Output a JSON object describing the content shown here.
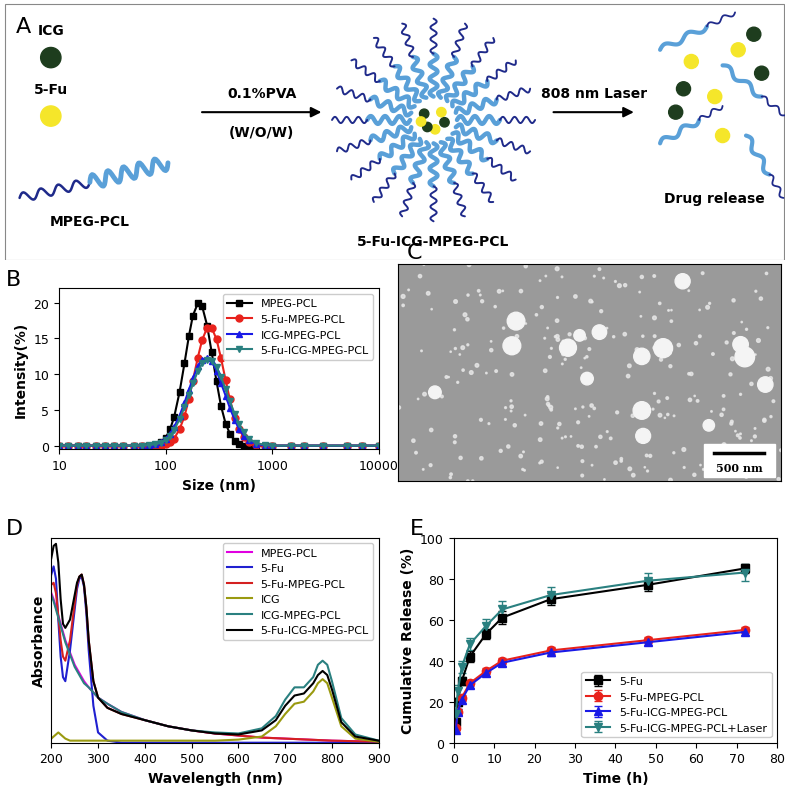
{
  "chart_data": [
    {
      "panel_label": "B",
      "type": "line",
      "log": "x",
      "x_label": "Size (nm)",
      "y_label": "Intensity(%)",
      "x": [
        10,
        12,
        15,
        18,
        22,
        27,
        33,
        40,
        50,
        60,
        70,
        80,
        90,
        100,
        110,
        120,
        135,
        150,
        165,
        180,
        200,
        220,
        245,
        270,
        300,
        330,
        365,
        400,
        445,
        490,
        540,
        600,
        700,
        850,
        1000,
        1500,
        2000,
        3000,
        5000,
        7000,
        10000
      ],
      "xlim": [
        10,
        10000
      ],
      "xticks": [
        10,
        100,
        1000,
        10000
      ],
      "ylim": [
        -0.5,
        22
      ],
      "yticks": [
        0,
        5,
        10,
        15,
        20
      ],
      "legend": "upper right",
      "series": [
        {
          "name": "MPEG-PCL",
          "color": "#000000",
          "marker": "square",
          "values": [
            0,
            0,
            0,
            0,
            0,
            0,
            0,
            0,
            0,
            0,
            0,
            0.1,
            0.5,
            1.1,
            2.3,
            4.0,
            7.5,
            11.5,
            15.3,
            18.2,
            19.9,
            19.5,
            16.8,
            13.1,
            9.0,
            5.6,
            3.1,
            1.7,
            0.7,
            0.2,
            0,
            0,
            0,
            0,
            0,
            0,
            0,
            0,
            0,
            0,
            0
          ]
        },
        {
          "name": "5-Fu-MPEG-PCL",
          "color": "#e8221c",
          "marker": "circle",
          "values": [
            0,
            0,
            0,
            0,
            0,
            0,
            0,
            0,
            0,
            0,
            0,
            0,
            0,
            0.2,
            0.5,
            1.0,
            2.3,
            4.1,
            6.5,
            9.1,
            12.3,
            14.8,
            16.5,
            16.5,
            14.9,
            12.3,
            9.2,
            6.5,
            3.9,
            2.3,
            1.2,
            0.5,
            0.1,
            0,
            0,
            0,
            0,
            0,
            0,
            0,
            0
          ]
        },
        {
          "name": "ICG-MPEG-PCL",
          "color": "#1a1ae6",
          "marker": "triangle_up",
          "values": [
            0,
            0,
            0,
            0,
            0,
            0,
            0,
            0,
            0,
            0,
            0.1,
            0.2,
            0.5,
            1.0,
            1.7,
            2.6,
            4.2,
            6.0,
            7.8,
            9.4,
            11.1,
            12.0,
            12.3,
            11.8,
            10.5,
            8.8,
            7.0,
            5.3,
            3.6,
            2.3,
            1.4,
            0.8,
            0.3,
            0,
            0,
            0,
            0,
            0,
            0,
            0,
            0
          ]
        },
        {
          "name": "5-Fu-ICG-MPEG-PCL",
          "color": "#2a8080",
          "marker": "triangle_down",
          "values": [
            0,
            0,
            0,
            0,
            0,
            0,
            0,
            0,
            0,
            0,
            0.1,
            0.2,
            0.4,
            0.8,
            1.4,
            2.2,
            3.7,
            5.4,
            7.1,
            8.7,
            10.4,
            11.5,
            12.0,
            11.9,
            11.0,
            9.6,
            7.9,
            6.2,
            4.4,
            3.0,
            1.9,
            1.0,
            0.4,
            0.1,
            0,
            0,
            0,
            0,
            0,
            0,
            0
          ]
        }
      ]
    },
    {
      "panel_label": "D",
      "type": "line",
      "tick_labels": "x",
      "x_label": "Wavelength (nm)",
      "y_label": "Absorbance",
      "x": [
        200,
        205,
        210,
        215,
        220,
        225,
        230,
        240,
        250,
        255,
        260,
        265,
        270,
        275,
        280,
        290,
        300,
        320,
        350,
        400,
        450,
        500,
        550,
        600,
        650,
        680,
        700,
        720,
        740,
        760,
        770,
        780,
        790,
        800,
        820,
        850,
        900
      ],
      "xlim": [
        200,
        900
      ],
      "xticks": [
        200,
        300,
        400,
        500,
        600,
        700,
        800,
        900
      ],
      "ylim": [
        0,
        1
      ],
      "yticks": [],
      "legend": "upper right",
      "series": [
        {
          "name": "MPEG-PCL",
          "color": "#e000e0",
          "values": [
            0.73,
            0.7,
            0.66,
            0.62,
            0.58,
            0.54,
            0.5,
            0.44,
            0.38,
            0.36,
            0.34,
            0.32,
            0.3,
            0.285,
            0.27,
            0.245,
            0.22,
            0.19,
            0.15,
            0.11,
            0.08,
            0.06,
            0.045,
            0.035,
            0.025,
            0.022,
            0.02,
            0.018,
            0.016,
            0.014,
            0.013,
            0.012,
            0.011,
            0.01,
            0.009,
            0.007,
            0.005
          ]
        },
        {
          "name": "5-Fu",
          "color": "#2020d0",
          "values": [
            0.82,
            0.86,
            0.8,
            0.6,
            0.42,
            0.32,
            0.3,
            0.45,
            0.65,
            0.75,
            0.8,
            0.81,
            0.76,
            0.63,
            0.45,
            0.18,
            0.05,
            0.01,
            0,
            0,
            0,
            0,
            0,
            0,
            0,
            0,
            0,
            0,
            0,
            0,
            0,
            0,
            0,
            0,
            0,
            0,
            0
          ]
        },
        {
          "name": "5-Fu-MPEG-PCL",
          "color": "#d42020",
          "values": [
            0.77,
            0.78,
            0.73,
            0.62,
            0.5,
            0.42,
            0.4,
            0.5,
            0.68,
            0.77,
            0.81,
            0.82,
            0.77,
            0.66,
            0.5,
            0.3,
            0.22,
            0.17,
            0.14,
            0.11,
            0.08,
            0.06,
            0.045,
            0.035,
            0.025,
            0.022,
            0.02,
            0.018,
            0.016,
            0.014,
            0.013,
            0.012,
            0.011,
            0.01,
            0.009,
            0.007,
            0.005
          ]
        },
        {
          "name": "ICG",
          "color": "#9a9a10",
          "values": [
            0.02,
            0.03,
            0.04,
            0.05,
            0.04,
            0.03,
            0.02,
            0.01,
            0.01,
            0.01,
            0.01,
            0.01,
            0.01,
            0.01,
            0.01,
            0.01,
            0.01,
            0.01,
            0.01,
            0.01,
            0.01,
            0.01,
            0.01,
            0.015,
            0.03,
            0.08,
            0.14,
            0.19,
            0.2,
            0.25,
            0.29,
            0.31,
            0.29,
            0.22,
            0.08,
            0.02,
            0.005
          ]
        },
        {
          "name": "ICG-MPEG-PCL",
          "color": "#2a8080",
          "values": [
            0.72,
            0.69,
            0.65,
            0.61,
            0.57,
            0.53,
            0.49,
            0.43,
            0.37,
            0.35,
            0.33,
            0.31,
            0.29,
            0.28,
            0.27,
            0.245,
            0.22,
            0.19,
            0.15,
            0.11,
            0.08,
            0.06,
            0.05,
            0.045,
            0.07,
            0.13,
            0.21,
            0.27,
            0.27,
            0.32,
            0.38,
            0.4,
            0.38,
            0.3,
            0.12,
            0.04,
            0.01
          ]
        },
        {
          "name": "5-Fu-ICG-MPEG-PCL",
          "color": "#000000",
          "values": [
            0.9,
            0.96,
            0.97,
            0.88,
            0.7,
            0.58,
            0.56,
            0.6,
            0.72,
            0.78,
            0.81,
            0.82,
            0.77,
            0.66,
            0.5,
            0.3,
            0.22,
            0.17,
            0.14,
            0.11,
            0.08,
            0.06,
            0.045,
            0.04,
            0.06,
            0.11,
            0.18,
            0.23,
            0.24,
            0.29,
            0.33,
            0.35,
            0.33,
            0.26,
            0.1,
            0.03,
            0.01
          ]
        }
      ]
    },
    {
      "panel_label": "E",
      "type": "line",
      "x_label": "Time (h)",
      "y_label": "Cumulative Release (%)",
      "x": [
        0.5,
        1,
        2,
        4,
        8,
        12,
        24,
        48,
        72
      ],
      "xlim": [
        0,
        80
      ],
      "xticks": [
        0,
        10,
        20,
        30,
        40,
        50,
        60,
        70,
        80
      ],
      "ylim": [
        0,
        100
      ],
      "yticks": [
        0,
        20,
        40,
        60,
        80,
        100
      ],
      "legend": "lower right",
      "series": [
        {
          "name": "5-Fu",
          "color": "#000000",
          "marker": "square",
          "values": [
            10,
            20,
            30,
            42,
            53,
            61,
            70,
            77,
            85
          ],
          "error": [
            1.5,
            2,
            2,
            2.5,
            2.5,
            3,
            3,
            3,
            2
          ]
        },
        {
          "name": "5-Fu-MPEG-PCL",
          "color": "#e8221c",
          "marker": "circle",
          "values": [
            7,
            15,
            22,
            29,
            35,
            40,
            45,
            50,
            55
          ],
          "error": [
            1,
            1.5,
            1.5,
            1.5,
            1.5,
            1.5,
            1.5,
            1.5,
            1.5
          ]
        },
        {
          "name": "5-Fu-ICG-MPEG-PCL",
          "color": "#1a1ae6",
          "marker": "triangle_up",
          "values": [
            6,
            15,
            21,
            28,
            34,
            39,
            44,
            49,
            54
          ],
          "error": [
            1,
            1.5,
            1.5,
            1.5,
            1.5,
            1.5,
            1.5,
            1.5,
            1.5
          ]
        },
        {
          "name": "5-Fu-ICG-MPEG-PCL+Laser",
          "color": "#2a8080",
          "marker": "triangle_down",
          "values": [
            14,
            25,
            37,
            48,
            57,
            65,
            72,
            79,
            83
          ],
          "error": [
            2,
            3,
            3,
            3,
            3.5,
            4,
            4,
            4,
            4
          ]
        }
      ]
    }
  ],
  "diagram": {
    "panel_label": "A",
    "nodes": {
      "icg": "ICG",
      "fu": "5-Fu",
      "polymer": "MPEG-PCL",
      "micelle": "5-Fu-ICG-MPEG-PCL",
      "release": "Drug release"
    },
    "arrows": [
      {
        "above": "0.1%PVA",
        "below": "(W/O/W)"
      },
      {
        "above": "808 nm Laser"
      }
    ]
  },
  "image": {
    "panel_label": "C",
    "scale_bar": "500 nm"
  }
}
